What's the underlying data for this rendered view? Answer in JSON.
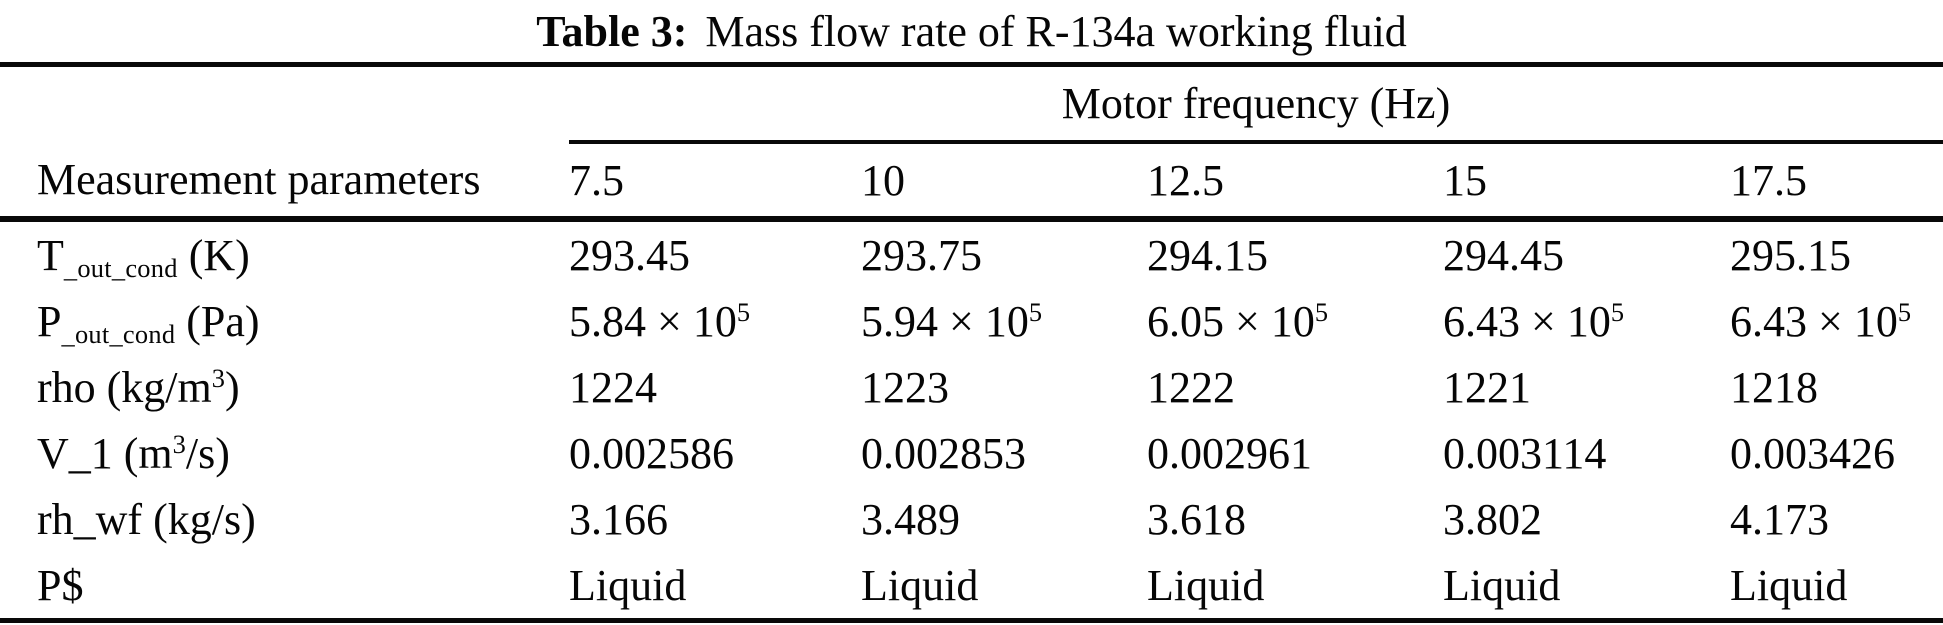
{
  "title": {
    "prefix": "Table 3:",
    "text": "Mass flow rate of R-134a working fluid"
  },
  "table": {
    "group_header": "Motor frequency (Hz)",
    "col_header": "Measurement parameters",
    "frequencies": [
      "7.5",
      "10",
      "12.5",
      "15",
      "17.5"
    ],
    "rows": [
      {
        "label": "T~_out_cond~ (K)",
        "values": [
          "293.45",
          "293.75",
          "294.15",
          "294.45",
          "295.15"
        ]
      },
      {
        "label": "P~_out_cond~ (Pa)",
        "values": [
          "5.84 × 10^5^",
          "5.94 × 10^5^",
          "6.05 × 10^5^",
          "6.43 × 10^5^",
          "6.43 × 10^5^"
        ]
      },
      {
        "label": "rho (kg/m^3^)",
        "values": [
          "1224",
          "1223",
          "1222",
          "1221",
          "1218"
        ]
      },
      {
        "label": "V_1 (m^3^/s)",
        "values": [
          "0.002586",
          "0.002853",
          "0.002961",
          "0.003114",
          "0.003426"
        ]
      },
      {
        "label": "rh_wf (kg/s)",
        "values": [
          "3.166",
          "3.489",
          "3.618",
          "3.802",
          "4.173"
        ]
      },
      {
        "label": "P$",
        "values": [
          "Liquid",
          "Liquid",
          "Liquid",
          "Liquid",
          "Liquid"
        ]
      }
    ]
  },
  "chart_data": {
    "type": "table",
    "title": "Table 3: Mass flow rate of R-134a working fluid",
    "column_group": "Motor frequency (Hz)",
    "columns": [
      "Measurement parameters",
      "7.5",
      "10",
      "12.5",
      "15",
      "17.5"
    ],
    "rows": [
      [
        "T_out_cond (K)",
        "293.45",
        "293.75",
        "294.15",
        "294.45",
        "295.15"
      ],
      [
        "P_out_cond (Pa)",
        "5.84e5",
        "5.94e5",
        "6.05e5",
        "6.43e5",
        "6.43e5"
      ],
      [
        "rho (kg/m^3)",
        "1224",
        "1223",
        "1222",
        "1221",
        "1218"
      ],
      [
        "V_1 (m^3/s)",
        "0.002586",
        "0.002853",
        "0.002961",
        "0.003114",
        "0.003426"
      ],
      [
        "rh_wf (kg/s)",
        "3.166",
        "3.489",
        "3.618",
        "3.802",
        "4.173"
      ],
      [
        "P$",
        "Liquid",
        "Liquid",
        "Liquid",
        "Liquid",
        "Liquid"
      ]
    ]
  }
}
